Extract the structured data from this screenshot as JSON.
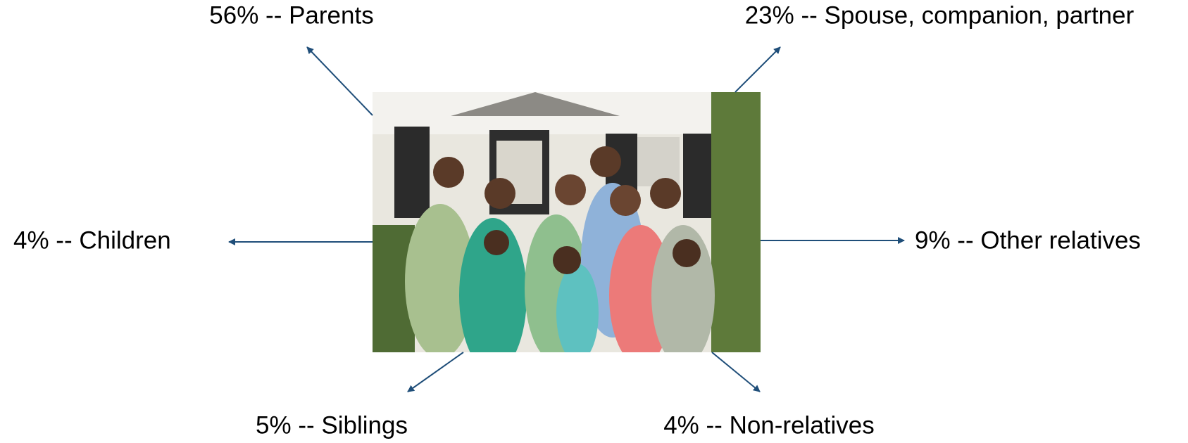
{
  "nodes": [
    {
      "label": "56% -- Parents"
    },
    {
      "label": "23% -- Spouse, companion, partner"
    },
    {
      "label": "4% -- Children"
    },
    {
      "label": "9% -- Other relatives"
    },
    {
      "label": "5% -- Siblings"
    },
    {
      "label": "4% -- Non-relatives"
    }
  ]
}
